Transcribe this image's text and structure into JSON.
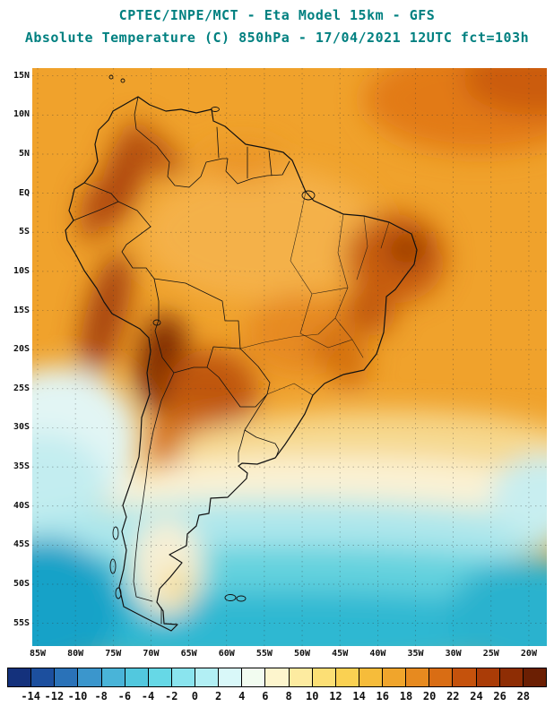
{
  "header": {
    "line1": "CPTEC/INPE/MCT -  Eta Model 15km - GFS",
    "line2": "Absolute Temperature (C) 850hPa - 17/04/2021 12UTC fct=103h",
    "title_color": "#008080"
  },
  "map": {
    "lat_ticks": [
      "15N",
      "10N",
      "5N",
      "EQ",
      "5S",
      "10S",
      "15S",
      "20S",
      "25S",
      "30S",
      "35S",
      "40S",
      "45S",
      "50S",
      "55S"
    ],
    "lon_ticks": [
      "85W",
      "80W",
      "75W",
      "70W",
      "65W",
      "60W",
      "55W",
      "50W",
      "45W",
      "40W",
      "35W",
      "30W",
      "25W",
      "20W"
    ],
    "axis_label_color": "#101010"
  },
  "colorbar": {
    "scale": {
      "min": -14,
      "max": 28,
      "step": 2
    },
    "tick_labels": [
      "-14",
      "-12",
      "-10",
      "-8",
      "-6",
      "-4",
      "-2",
      "0",
      "2",
      "4",
      "6",
      "8",
      "10",
      "12",
      "14",
      "16",
      "18",
      "20",
      "22",
      "24",
      "26",
      "28"
    ],
    "cell_colors": [
      "#14317c",
      "#1c4f9e",
      "#2a72b8",
      "#3b96cc",
      "#49b4d8",
      "#52c8de",
      "#66d8e6",
      "#8ae4ee",
      "#b2eff4",
      "#d9f8f9",
      "#f2fcf0",
      "#fdf5cd",
      "#fdeba0",
      "#fcdf75",
      "#fad152",
      "#f6bc3a",
      "#f0a52c",
      "#e78a1f",
      "#d96d14",
      "#c5520c",
      "#aa3c07",
      "#8e2d04",
      "#6b1f03"
    ]
  }
}
